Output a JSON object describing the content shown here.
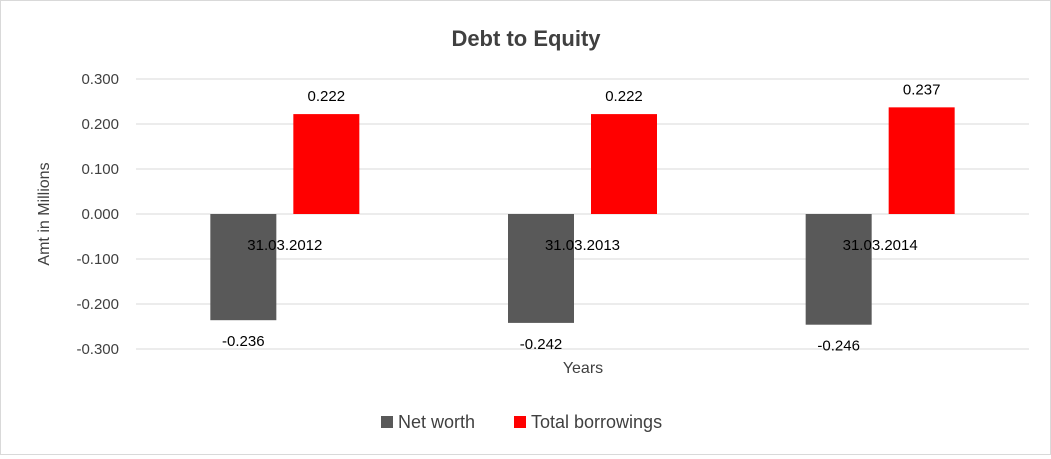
{
  "chart_data": {
    "type": "bar",
    "title": "Debt to Equity",
    "xlabel": "Years",
    "ylabel": "Amt in Millions",
    "categories": [
      "31.03.2012",
      "31.03.2013",
      "31.03.2014"
    ],
    "series": [
      {
        "name": "Net worth",
        "color": "#595959",
        "values": [
          -0.236,
          -0.242,
          -0.246
        ]
      },
      {
        "name": "Total borrowings",
        "color": "#ff0000",
        "values": [
          0.222,
          0.222,
          0.237
        ]
      }
    ],
    "ylim": [
      -0.3,
      0.3
    ],
    "yticks": [
      "0.300",
      "0.200",
      "0.100",
      "0.000",
      "-0.100",
      "-0.200",
      "-0.300"
    ],
    "data_labels": [
      [
        "-0.236",
        "-0.242",
        "-0.246"
      ],
      [
        "0.222",
        "0.222",
        "0.237"
      ]
    ],
    "grid": true,
    "legend": "bottom"
  }
}
